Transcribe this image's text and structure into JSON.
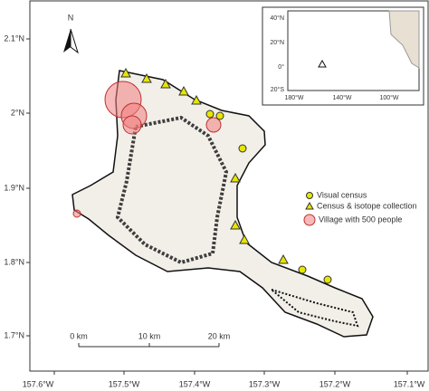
{
  "north_arrow": "N",
  "lat_ticks": [
    "2.1°N",
    "2°N",
    "1.9°N",
    "1.8°N",
    "1.7°N"
  ],
  "lon_ticks": [
    "157.6°W",
    "157.5°W",
    "157.4°W",
    "157.3°W",
    "157.2°W",
    "157.1°W"
  ],
  "scale_bar": [
    "0 km",
    "10 km",
    "20 km"
  ],
  "legend": [
    "Visual census",
    "Census & isotope collection",
    "Village with 500 people"
  ],
  "inset": {
    "lat_ticks": [
      "40°N",
      "20°N",
      "0°",
      "20°S"
    ],
    "lon_ticks": [
      "180°W",
      "140°W",
      "100°W"
    ]
  }
}
